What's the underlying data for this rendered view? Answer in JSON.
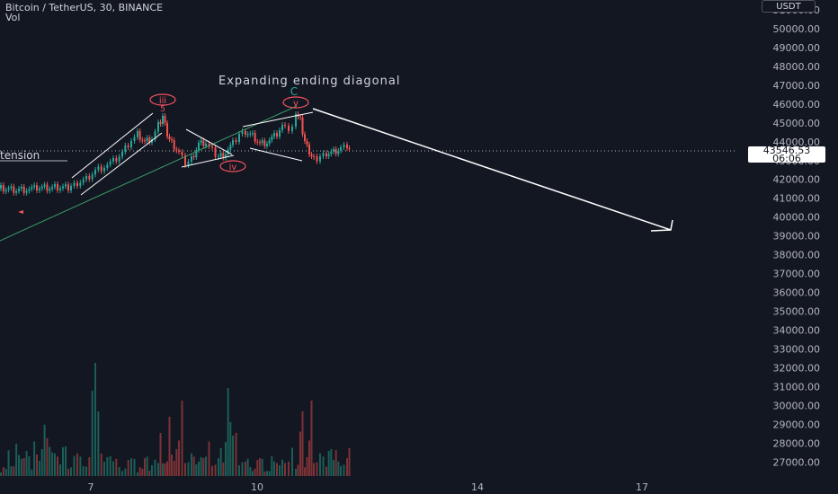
{
  "header": {
    "symbol_line": "Bitcoin / TetherUS, 30, BINANCE",
    "volume_label": "Vol"
  },
  "price_scale": {
    "currency_button": "USDT",
    "ticks": [
      "51000.00",
      "50000.00",
      "49000.00",
      "48000.00",
      "47000.00",
      "46000.00",
      "45000.00",
      "44000.00",
      "43000.00",
      "42000.00",
      "41000.00",
      "40000.00",
      "39000.00",
      "38000.00",
      "37000.00",
      "36000.00",
      "35000.00",
      "34000.00",
      "33000.00",
      "32000.00",
      "31000.00",
      "30000.00",
      "29000.00",
      "28000.00",
      "27000.00"
    ],
    "last_price": "43546.53",
    "countdown": "06:06"
  },
  "time_scale": {
    "ticks": [
      "7",
      "10",
      "14",
      "17"
    ]
  },
  "annotations": {
    "pattern_title": "Expanding ending diagonal",
    "wave_iii": "iii",
    "wave_iii_sub": "5",
    "wave_iv": "iv",
    "wave_v": "v",
    "wave_c": "C",
    "extension_label": "tension"
  },
  "colors": {
    "background": "#131722",
    "up_candle": "#26a69a",
    "down_candle": "#ef5350",
    "wave_label": "#f7525f",
    "wave_c": "#26a69a",
    "trendline": "#ffffff",
    "support_line": "#3c9a6a"
  }
}
